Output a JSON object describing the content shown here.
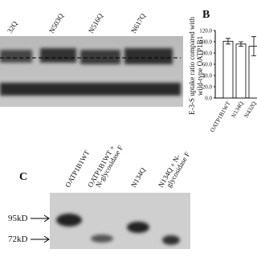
{
  "blot_a": {
    "lanes": [
      "32Q",
      "N503Q",
      "N516Q",
      "N617Q"
    ]
  },
  "chart_data": {
    "type": "bar",
    "panel": "B",
    "y_label": [
      "E-3-S uptake ratio compared with",
      "wild-type OATP1B1"
    ],
    "categories": [
      "OATP1B1WT",
      "N134Q",
      "N432Q"
    ],
    "values": [
      101,
      96,
      92
    ],
    "errors": [
      5,
      4,
      17
    ],
    "color": "#ffffff",
    "ylim": [
      0,
      120
    ],
    "yticks": [
      {
        "value": 0,
        "label": "0.0"
      },
      {
        "value": 20,
        "label": "20.0"
      },
      {
        "value": 40,
        "label": "40.0"
      },
      {
        "value": 60,
        "label": "60.0"
      },
      {
        "value": 80,
        "label": "80.0"
      },
      {
        "value": 100,
        "label": "100.0"
      },
      {
        "value": 120,
        "label": "120.0"
      }
    ]
  },
  "blot_c": {
    "panel": "C",
    "lanes": [
      [
        "OATP1B1WT"
      ],
      [
        "OATP1B1WT +",
        "N-glycosidase F"
      ],
      [
        "N134Q"
      ],
      [
        "N134Q + N-",
        "glycosidase F"
      ]
    ],
    "markers": [
      "95kD",
      "72kD"
    ]
  }
}
